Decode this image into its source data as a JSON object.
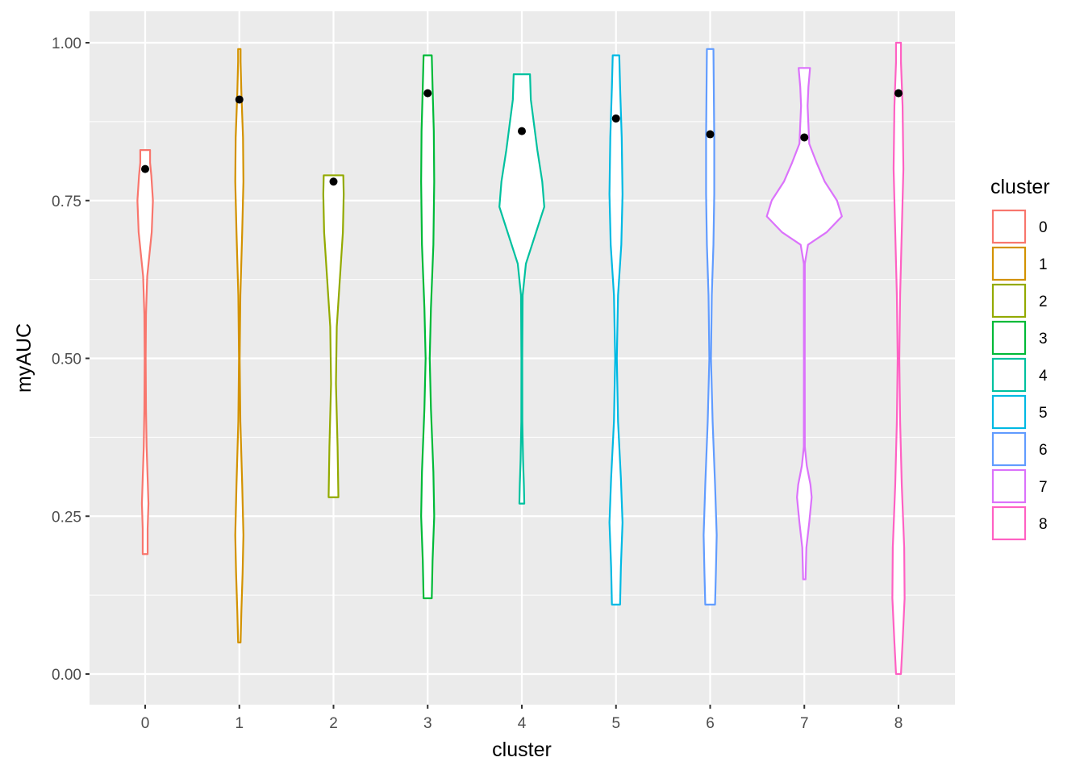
{
  "chart_data": {
    "type": "violin",
    "xlabel": "cluster",
    "ylabel": "myAUC",
    "ylim": [
      0,
      1
    ],
    "yticks": [
      "0.00",
      "0.25",
      "0.50",
      "0.75",
      "1.00"
    ],
    "categories": [
      "0",
      "1",
      "2",
      "3",
      "4",
      "5",
      "6",
      "7",
      "8"
    ],
    "grid": true,
    "legend": {
      "title": "cluster",
      "position": "right",
      "entries": [
        "0",
        "1",
        "2",
        "3",
        "4",
        "5",
        "6",
        "7",
        "8"
      ]
    },
    "colors": [
      "#F8766D",
      "#D39200",
      "#93AA00",
      "#00BA38",
      "#00C19F",
      "#00B9E3",
      "#619CFF",
      "#DB72FB",
      "#FF61C3"
    ],
    "points_note_label": "median",
    "series": [
      {
        "name": "0",
        "ymin": 0.19,
        "ymax": 0.83,
        "point": 0.8,
        "profile": [
          [
            0.19,
            0.06
          ],
          [
            0.23,
            0.06
          ],
          [
            0.27,
            0.08
          ],
          [
            0.31,
            0.06
          ],
          [
            0.36,
            0.035
          ],
          [
            0.42,
            0.02
          ],
          [
            0.5,
            0.012
          ],
          [
            0.57,
            0.02
          ],
          [
            0.63,
            0.05
          ],
          [
            0.7,
            0.16
          ],
          [
            0.75,
            0.19
          ],
          [
            0.79,
            0.15
          ],
          [
            0.81,
            0.12
          ],
          [
            0.83,
            0.12
          ]
        ]
      },
      {
        "name": "1",
        "ymin": 0.05,
        "ymax": 0.99,
        "point": 0.91,
        "profile": [
          [
            0.05,
            0.03
          ],
          [
            0.1,
            0.05
          ],
          [
            0.16,
            0.08
          ],
          [
            0.22,
            0.1
          ],
          [
            0.3,
            0.07
          ],
          [
            0.4,
            0.025
          ],
          [
            0.5,
            0.008
          ],
          [
            0.6,
            0.025
          ],
          [
            0.7,
            0.07
          ],
          [
            0.78,
            0.1
          ],
          [
            0.85,
            0.09
          ],
          [
            0.92,
            0.05
          ],
          [
            0.97,
            0.03
          ],
          [
            0.99,
            0.03
          ]
        ]
      },
      {
        "name": "2",
        "ymin": 0.28,
        "ymax": 0.79,
        "point": 0.78,
        "profile": [
          [
            0.28,
            0.12
          ],
          [
            0.36,
            0.1
          ],
          [
            0.46,
            0.06
          ],
          [
            0.55,
            0.08
          ],
          [
            0.63,
            0.16
          ],
          [
            0.7,
            0.23
          ],
          [
            0.76,
            0.25
          ],
          [
            0.79,
            0.24
          ]
        ]
      },
      {
        "name": "3",
        "ymin": 0.12,
        "ymax": 0.98,
        "point": 0.92,
        "profile": [
          [
            0.12,
            0.1
          ],
          [
            0.18,
            0.12
          ],
          [
            0.25,
            0.16
          ],
          [
            0.32,
            0.14
          ],
          [
            0.42,
            0.08
          ],
          [
            0.5,
            0.05
          ],
          [
            0.58,
            0.08
          ],
          [
            0.68,
            0.14
          ],
          [
            0.78,
            0.16
          ],
          [
            0.86,
            0.15
          ],
          [
            0.93,
            0.12
          ],
          [
            0.98,
            0.1
          ]
        ]
      },
      {
        "name": "4",
        "ymin": 0.27,
        "ymax": 0.95,
        "point": 0.86,
        "profile": [
          [
            0.27,
            0.06
          ],
          [
            0.3,
            0.05
          ],
          [
            0.34,
            0.03
          ],
          [
            0.4,
            0.012
          ],
          [
            0.5,
            0.01
          ],
          [
            0.6,
            0.02
          ],
          [
            0.65,
            0.1
          ],
          [
            0.7,
            0.35
          ],
          [
            0.74,
            0.55
          ],
          [
            0.78,
            0.5
          ],
          [
            0.83,
            0.38
          ],
          [
            0.87,
            0.3
          ],
          [
            0.91,
            0.22
          ],
          [
            0.95,
            0.2
          ]
        ]
      },
      {
        "name": "5",
        "ymin": 0.11,
        "ymax": 0.98,
        "point": 0.88,
        "profile": [
          [
            0.11,
            0.1
          ],
          [
            0.17,
            0.12
          ],
          [
            0.24,
            0.16
          ],
          [
            0.31,
            0.12
          ],
          [
            0.4,
            0.05
          ],
          [
            0.5,
            0.02
          ],
          [
            0.6,
            0.05
          ],
          [
            0.68,
            0.13
          ],
          [
            0.76,
            0.16
          ],
          [
            0.85,
            0.14
          ],
          [
            0.93,
            0.1
          ],
          [
            0.98,
            0.08
          ]
        ]
      },
      {
        "name": "6",
        "ymin": 0.11,
        "ymax": 0.99,
        "point": 0.855,
        "profile": [
          [
            0.11,
            0.12
          ],
          [
            0.16,
            0.14
          ],
          [
            0.22,
            0.16
          ],
          [
            0.3,
            0.12
          ],
          [
            0.4,
            0.06
          ],
          [
            0.5,
            0.02
          ],
          [
            0.6,
            0.04
          ],
          [
            0.68,
            0.08
          ],
          [
            0.76,
            0.1
          ],
          [
            0.85,
            0.1
          ],
          [
            0.92,
            0.09
          ],
          [
            0.99,
            0.08
          ]
        ]
      },
      {
        "name": "7",
        "ymin": 0.15,
        "ymax": 0.96,
        "point": 0.85,
        "profile": [
          [
            0.15,
            0.03
          ],
          [
            0.2,
            0.05
          ],
          [
            0.24,
            0.12
          ],
          [
            0.28,
            0.18
          ],
          [
            0.3,
            0.15
          ],
          [
            0.33,
            0.06
          ],
          [
            0.36,
            0.012
          ],
          [
            0.5,
            0.01
          ],
          [
            0.65,
            0.012
          ],
          [
            0.68,
            0.09
          ],
          [
            0.7,
            0.55
          ],
          [
            0.725,
            0.92
          ],
          [
            0.75,
            0.8
          ],
          [
            0.78,
            0.5
          ],
          [
            0.81,
            0.3
          ],
          [
            0.84,
            0.12
          ],
          [
            0.87,
            0.1
          ],
          [
            0.9,
            0.08
          ],
          [
            0.93,
            0.1
          ],
          [
            0.96,
            0.14
          ]
        ]
      },
      {
        "name": "8",
        "ymin": 0.0,
        "ymax": 1.0,
        "point": 0.92,
        "profile": [
          [
            0.0,
            0.06
          ],
          [
            0.05,
            0.1
          ],
          [
            0.12,
            0.15
          ],
          [
            0.2,
            0.14
          ],
          [
            0.3,
            0.08
          ],
          [
            0.4,
            0.04
          ],
          [
            0.5,
            0.02
          ],
          [
            0.6,
            0.04
          ],
          [
            0.7,
            0.08
          ],
          [
            0.8,
            0.12
          ],
          [
            0.9,
            0.1
          ],
          [
            0.97,
            0.06
          ],
          [
            1.0,
            0.06
          ]
        ]
      }
    ]
  }
}
